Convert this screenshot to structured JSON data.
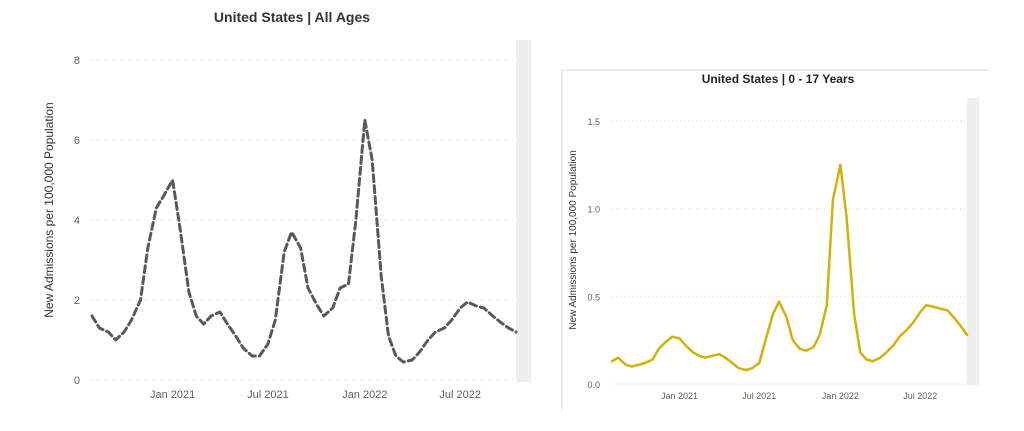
{
  "chart_data": [
    {
      "type": "line",
      "title": "United States | All Ages",
      "xlabel": "",
      "ylabel": "New Admissions per 100,000 Population",
      "ylim": [
        0,
        8
      ],
      "yticks": [
        "0",
        "2",
        "4",
        "6",
        "8"
      ],
      "xticks": [
        "Jan 2021",
        "Jul 2021",
        "Jan 2022",
        "Jul 2022"
      ],
      "xticks_at": [
        "2021-01-01",
        "2021-07-01",
        "2022-01-01",
        "2022-07-01"
      ],
      "xrange": [
        "2020-08-01",
        "2022-10-15"
      ],
      "grid": true,
      "line_style": "dashed",
      "color": "#595959",
      "series": [
        {
          "x": [
            "2020-08-01",
            "2020-08-15",
            "2020-09-01",
            "2020-09-15",
            "2020-10-01",
            "2020-10-15",
            "2020-11-01",
            "2020-11-15",
            "2020-12-01",
            "2020-12-15",
            "2021-01-01",
            "2021-01-15",
            "2021-02-01",
            "2021-02-15",
            "2021-03-01",
            "2021-03-15",
            "2021-04-01",
            "2021-04-15",
            "2021-05-01",
            "2021-05-15",
            "2021-06-01",
            "2021-06-15",
            "2021-07-01",
            "2021-07-15",
            "2021-08-01",
            "2021-08-15",
            "2021-09-01",
            "2021-09-15",
            "2021-10-01",
            "2021-10-15",
            "2021-11-01",
            "2021-11-15",
            "2021-12-01",
            "2021-12-15",
            "2022-01-01",
            "2022-01-15",
            "2022-02-01",
            "2022-02-15",
            "2022-03-01",
            "2022-03-15",
            "2022-04-01",
            "2022-04-15",
            "2022-05-01",
            "2022-05-15",
            "2022-06-01",
            "2022-06-15",
            "2022-07-01",
            "2022-07-15",
            "2022-08-01",
            "2022-08-15",
            "2022-09-01",
            "2022-09-15",
            "2022-10-01",
            "2022-10-15"
          ],
          "values": [
            1.6,
            1.3,
            1.2,
            1.0,
            1.2,
            1.5,
            2.0,
            3.3,
            4.3,
            4.6,
            5.0,
            3.8,
            2.2,
            1.6,
            1.4,
            1.6,
            1.7,
            1.4,
            1.1,
            0.8,
            0.6,
            0.6,
            0.9,
            1.5,
            3.2,
            3.7,
            3.3,
            2.3,
            1.9,
            1.6,
            1.8,
            2.3,
            2.4,
            4.0,
            6.5,
            5.5,
            2.6,
            1.1,
            0.6,
            0.45,
            0.5,
            0.7,
            1.0,
            1.2,
            1.3,
            1.5,
            1.8,
            1.95,
            1.85,
            1.8,
            1.6,
            1.45,
            1.3,
            1.2
          ]
        }
      ]
    },
    {
      "type": "line",
      "title": "United States | 0 - 17 Years",
      "xlabel": "",
      "ylabel": "New Admissions per 100,000 Population",
      "ylim": [
        0,
        1.5
      ],
      "yticks": [
        "0.0",
        "0.5",
        "1.0",
        "1.5"
      ],
      "xticks": [
        "Jan 2021",
        "Jul 2021",
        "Jan 2022",
        "Jul 2022"
      ],
      "xticks_at": [
        "2021-01-01",
        "2021-07-01",
        "2022-01-01",
        "2022-07-01"
      ],
      "xrange": [
        "2020-08-01",
        "2022-10-15"
      ],
      "grid": true,
      "line_style": "solid",
      "color": "#d4b106",
      "series": [
        {
          "x": [
            "2020-08-01",
            "2020-08-15",
            "2020-09-01",
            "2020-09-15",
            "2020-10-01",
            "2020-10-15",
            "2020-11-01",
            "2020-11-15",
            "2020-12-01",
            "2020-12-15",
            "2021-01-01",
            "2021-01-15",
            "2021-02-01",
            "2021-02-15",
            "2021-03-01",
            "2021-03-15",
            "2021-04-01",
            "2021-04-15",
            "2021-05-01",
            "2021-05-15",
            "2021-06-01",
            "2021-06-15",
            "2021-07-01",
            "2021-07-15",
            "2021-08-01",
            "2021-08-15",
            "2021-09-01",
            "2021-09-15",
            "2021-10-01",
            "2021-10-15",
            "2021-11-01",
            "2021-11-15",
            "2021-12-01",
            "2021-12-15",
            "2022-01-01",
            "2022-01-15",
            "2022-02-01",
            "2022-02-15",
            "2022-03-01",
            "2022-03-15",
            "2022-04-01",
            "2022-04-15",
            "2022-05-01",
            "2022-05-15",
            "2022-06-01",
            "2022-06-15",
            "2022-07-01",
            "2022-07-15",
            "2022-08-01",
            "2022-08-15",
            "2022-09-01",
            "2022-09-15",
            "2022-10-01",
            "2022-10-15"
          ],
          "values": [
            0.13,
            0.15,
            0.11,
            0.1,
            0.11,
            0.12,
            0.14,
            0.2,
            0.24,
            0.27,
            0.26,
            0.22,
            0.18,
            0.16,
            0.15,
            0.16,
            0.17,
            0.15,
            0.12,
            0.09,
            0.08,
            0.09,
            0.12,
            0.25,
            0.4,
            0.47,
            0.38,
            0.25,
            0.2,
            0.19,
            0.21,
            0.28,
            0.45,
            1.05,
            1.25,
            0.95,
            0.4,
            0.18,
            0.14,
            0.13,
            0.15,
            0.18,
            0.22,
            0.27,
            0.31,
            0.35,
            0.41,
            0.45,
            0.44,
            0.43,
            0.42,
            0.38,
            0.33,
            0.28
          ]
        }
      ]
    }
  ]
}
